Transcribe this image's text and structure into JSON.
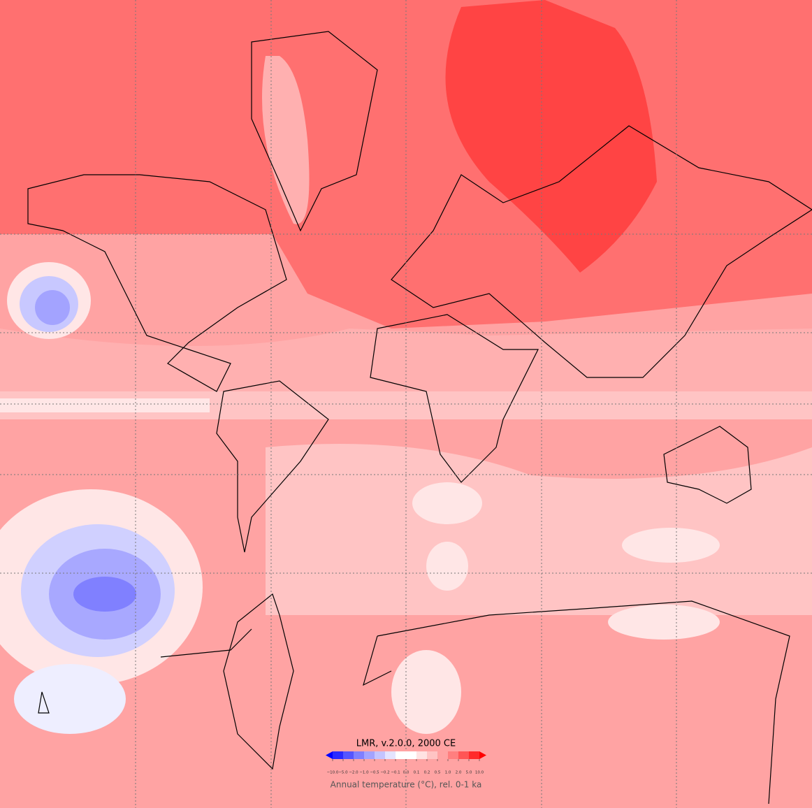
{
  "colorbar": {
    "title": "LMR, v.2.0.0, 2000 CE",
    "caption": "Annual temperature (°C), rel. 0-1 ka",
    "ticks": [
      {
        "value": -10,
        "label": "−10.0"
      },
      {
        "value": -5,
        "label": "−5.0"
      },
      {
        "value": -2,
        "label": "−2.0"
      },
      {
        "value": -1,
        "label": "−1.0"
      },
      {
        "value": -0.5,
        "label": "−0.5"
      },
      {
        "value": -0.2,
        "label": "−0.2"
      },
      {
        "value": -0.1,
        "label": "−0.1"
      },
      {
        "value": 0,
        "label": "0.0"
      },
      {
        "value": 0.1,
        "label": "0.1"
      },
      {
        "value": 0.2,
        "label": "0.2"
      },
      {
        "value": 0.5,
        "label": "0.5"
      },
      {
        "value": 1,
        "label": "1.0"
      },
      {
        "value": 2,
        "label": "2.0"
      },
      {
        "value": 5,
        "label": "5.0"
      },
      {
        "value": 10,
        "label": "10.0"
      }
    ],
    "colors": [
      "#2a2aff",
      "#5555ff",
      "#7f7fff",
      "#a3a3ff",
      "#c4c4ff",
      "#e4e4ff",
      "#ffffff",
      "#ffffff",
      "#ffe2e2",
      "#ffc4c4",
      "#ffa3a3",
      "#ff7f7f",
      "#ff5555",
      "#ff2a2a"
    ],
    "under_color": "#0000ff",
    "over_color": "#ff0000"
  }
}
